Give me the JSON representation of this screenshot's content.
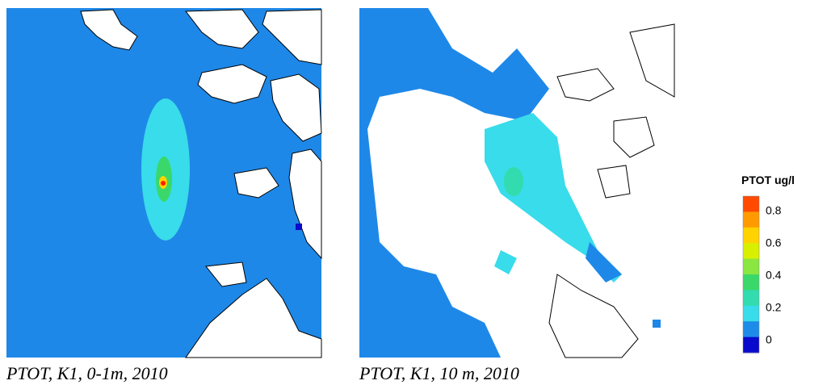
{
  "panels": [
    {
      "caption": "PTOT, K1, 0-1m, 2010"
    },
    {
      "caption": "PTOT, K1, 10 m, 2010"
    }
  ],
  "legend": {
    "title": "PTOT ug/l",
    "colors": [
      "#ff4a00",
      "#ff9a00",
      "#ffd200",
      "#d8f000",
      "#8ae640",
      "#3ad86a",
      "#33dcae",
      "#38dcea",
      "#1e8be8",
      "#0a0acc"
    ],
    "ticks": [
      0.8,
      0.6,
      0.4,
      0.2,
      0
    ]
  }
}
